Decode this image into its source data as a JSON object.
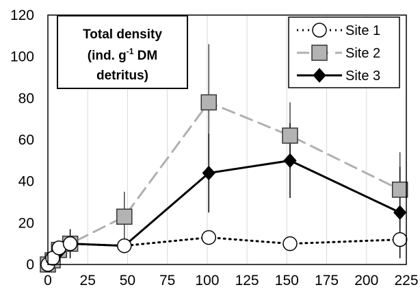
{
  "chart_data": {
    "type": "line",
    "title_lines": [
      "Total density",
      "(ind. g",
      "-1",
      " DM",
      "detritus)"
    ],
    "xlim": [
      0,
      225
    ],
    "ylim": [
      0,
      120
    ],
    "x_ticks": [
      "0",
      "25",
      "50",
      "75",
      "100",
      "125",
      "150",
      "175",
      "200",
      "225"
    ],
    "y_ticks": [
      "0",
      "20",
      "40",
      "60",
      "80",
      "100",
      "120"
    ],
    "grid": "vertical",
    "legend_position": "top-right",
    "series": [
      {
        "name": "Site 1",
        "color": "#000000",
        "line_style": "dotted",
        "marker": "circle-open",
        "x": [
          0,
          3,
          7,
          14,
          48,
          101,
          152,
          221
        ],
        "y": [
          0,
          3,
          8,
          10,
          9,
          13,
          10,
          12
        ],
        "err": [
          0,
          0,
          0,
          0,
          0,
          0,
          0,
          0
        ]
      },
      {
        "name": "Site 2",
        "color": "#b0b0b0",
        "line_style": "dashed",
        "marker": "square-gray",
        "x": [
          0,
          3,
          7,
          14,
          48,
          101,
          152,
          221
        ],
        "y": [
          0,
          2,
          7,
          10,
          23,
          78,
          62,
          36
        ],
        "err": [
          0,
          0,
          0,
          0,
          12,
          28,
          16,
          18
        ]
      },
      {
        "name": "Site 3",
        "color": "#000000",
        "line_style": "solid",
        "marker": "diamond-filled",
        "x": [
          0,
          3,
          7,
          14,
          48,
          101,
          152,
          221
        ],
        "y": [
          0,
          3,
          6,
          10,
          9,
          44,
          50,
          25
        ],
        "err": [
          0,
          0,
          0,
          7,
          0,
          19,
          18,
          22
        ]
      }
    ]
  }
}
